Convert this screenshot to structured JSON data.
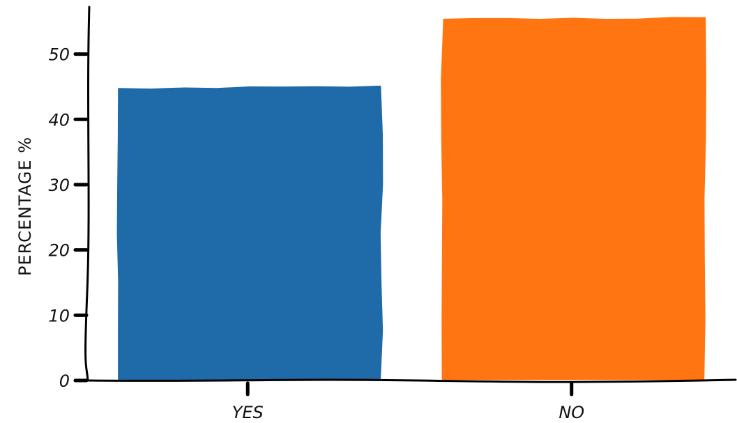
{
  "chart_data": {
    "type": "bar",
    "title": "",
    "xlabel": "",
    "ylabel": "PERCENTAGE %",
    "categories": [
      "YES",
      "NO"
    ],
    "values": [
      44.7,
      55.3
    ],
    "colors": [
      "#1f6aa8",
      "#ff7511"
    ],
    "ylim": [
      0,
      57
    ],
    "yticks": [
      0,
      10,
      20,
      30,
      40,
      50
    ],
    "grid": false,
    "style": "hand-drawn"
  }
}
